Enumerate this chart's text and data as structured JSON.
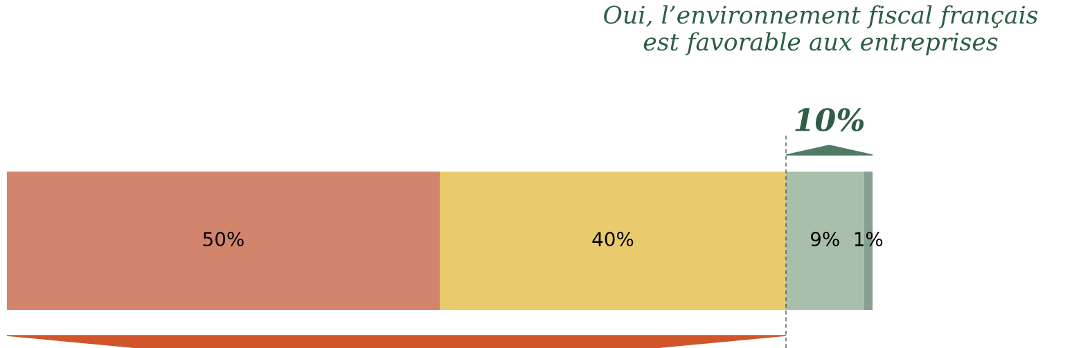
{
  "chart_data": {
    "type": "bar",
    "orientation": "horizontal",
    "stacked": true,
    "categories": [
      null
    ],
    "series": [
      {
        "color": "#d3846d",
        "values": [
          50
        ],
        "value_labels": [
          "50%"
        ]
      },
      {
        "color": "#e9cb6e",
        "values": [
          40
        ],
        "value_labels": [
          "40%"
        ]
      },
      {
        "color": "#aabfab",
        "values": [
          9
        ],
        "value_labels": [
          "9%"
        ]
      },
      {
        "color": "#87a08f",
        "values": [
          1
        ],
        "value_labels": [
          "1%"
        ]
      }
    ],
    "title": "Oui, l’environnement fiscal français\nest favorable aux entreprises",
    "annotations": [
      "10%"
    ],
    "ref_lines": [
      {
        "axis": "x",
        "value": 90,
        "color": "#555555",
        "line_style": "dashed"
      }
    ],
    "legend": false
  }
}
